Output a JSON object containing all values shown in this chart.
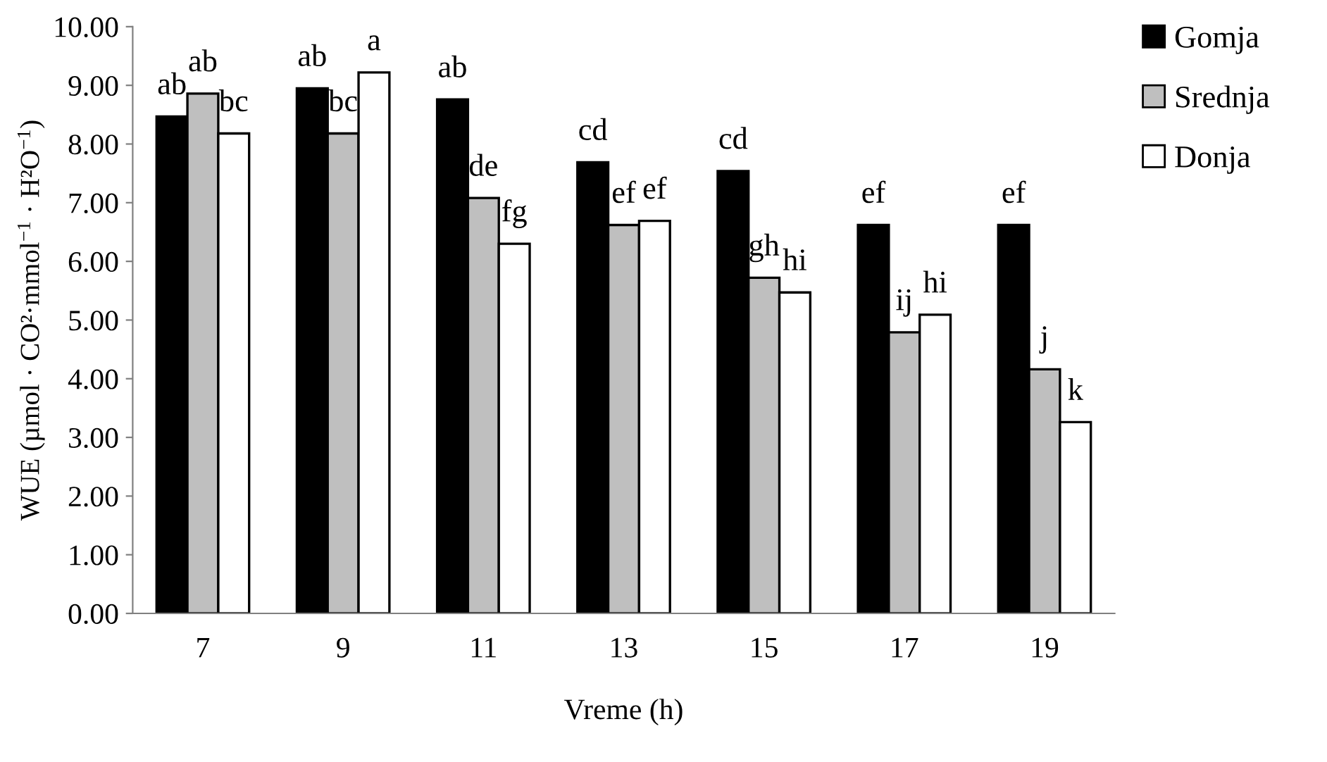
{
  "chart_data": {
    "type": "bar",
    "xlabel": "Vreme (h)",
    "ylabel": "WUE (µmol · CO²·mmol$^{−1}$ · H²O$^{−1}$)",
    "categories": [
      "7",
      "9",
      "11",
      "13",
      "15",
      "17",
      "19"
    ],
    "series": [
      {
        "name": "Gomja",
        "color": "#000000",
        "values": [
          8.47,
          8.95,
          8.76,
          7.69,
          7.54,
          6.62,
          6.62
        ],
        "value_labels": [
          "ab",
          "ab",
          "ab",
          "cd",
          "cd",
          "ef",
          "ef"
        ]
      },
      {
        "name": "Srednja",
        "color": "#bfbfbf",
        "values": [
          8.86,
          8.18,
          7.08,
          6.62,
          5.72,
          4.79,
          4.16
        ],
        "value_labels": [
          "ab",
          "bc",
          "de",
          "ef",
          "gh",
          "ij",
          "j"
        ]
      },
      {
        "name": "Donja",
        "color": "#ffffff",
        "values": [
          8.18,
          9.22,
          6.3,
          6.69,
          5.47,
          5.09,
          3.26
        ],
        "value_labels": [
          "bc",
          "a",
          "fg",
          "ef",
          "hi",
          "hi",
          "k"
        ]
      }
    ],
    "ylim": [
      0,
      10
    ],
    "yticks": [
      {
        "value": 0,
        "label": "0.00"
      },
      {
        "value": 1,
        "label": "1.00"
      },
      {
        "value": 2,
        "label": "2.00"
      },
      {
        "value": 3,
        "label": "3.00"
      },
      {
        "value": 4,
        "label": "4.00"
      },
      {
        "value": 5,
        "label": "5.00"
      },
      {
        "value": 6,
        "label": "6.00"
      },
      {
        "value": 7,
        "label": "7.00"
      },
      {
        "value": 8,
        "label": "8.00"
      },
      {
        "value": 9,
        "label": "9.00"
      },
      {
        "value": 10,
        "label": "10.00"
      }
    ],
    "legend": "right",
    "grid": false
  }
}
